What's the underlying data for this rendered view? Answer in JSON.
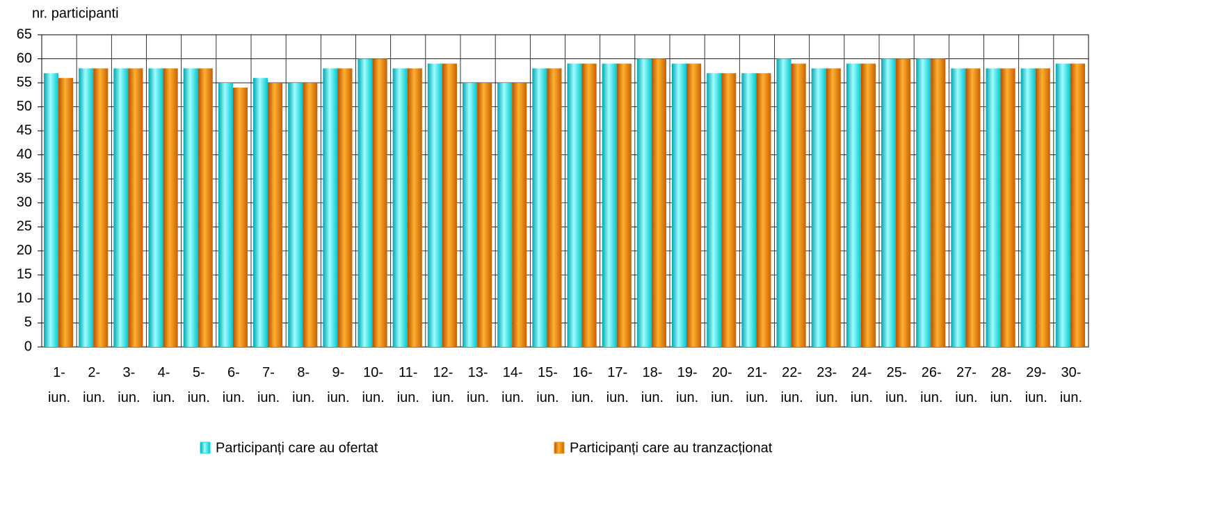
{
  "chart_data": {
    "type": "bar",
    "y_label": "nr. participanti",
    "categories": [
      "1-\niun.",
      "2-\niun.",
      "3-\niun.",
      "4-\niun.",
      "5-\niun.",
      "6-\niun.",
      "7-\niun.",
      "8-\niun.",
      "9-\niun.",
      "10-\niun.",
      "11-\niun.",
      "12-\niun.",
      "13-\niun.",
      "14-\niun.",
      "15-\niun.",
      "16-\niun.",
      "17-\niun.",
      "18-\niun.",
      "19-\niun.",
      "20-\niun.",
      "21-\niun.",
      "22-\niun.",
      "23-\niun.",
      "24-\niun.",
      "25-\niun.",
      "26-\niun.",
      "27-\niun.",
      "28-\niun.",
      "29-\niun.",
      "30-\niun."
    ],
    "series": [
      {
        "name": "Participanți care au ofertat",
        "color": "#00e0e0",
        "values": [
          57,
          58,
          58,
          58,
          58,
          55,
          56,
          55,
          58,
          60,
          58,
          59,
          55,
          55,
          58,
          59,
          59,
          60,
          59,
          57,
          57,
          60,
          58,
          59,
          60,
          60,
          58,
          58,
          58,
          59
        ]
      },
      {
        "name": "Participanți care au tranzacționat",
        "color": "#f29100",
        "values": [
          56,
          58,
          58,
          58,
          58,
          54,
          55,
          55,
          58,
          60,
          58,
          59,
          55,
          55,
          58,
          59,
          59,
          60,
          59,
          57,
          57,
          59,
          58,
          59,
          60,
          60,
          58,
          58,
          58,
          59
        ]
      }
    ],
    "ylim": [
      0,
      65
    ],
    "yticks": [
      0,
      5,
      10,
      15,
      20,
      25,
      30,
      35,
      40,
      45,
      50,
      55,
      60,
      65
    ],
    "grid": true
  }
}
